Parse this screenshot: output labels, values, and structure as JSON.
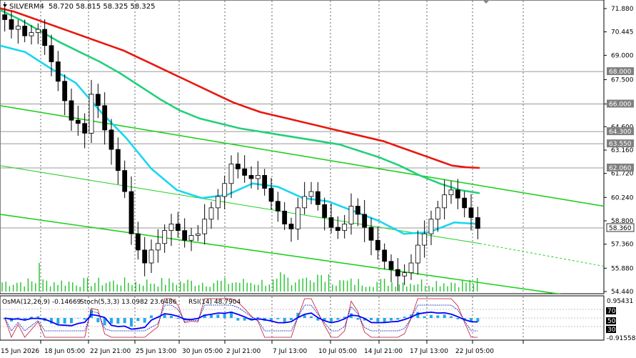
{
  "header": {
    "symbol": "SILVERM4",
    "ohlc": "58.720 58.815 58.325 58.325"
  },
  "indicator_header": {
    "osma": "OsMA(12,26,9) -0.14669",
    "stoch": "Stoch(5,3,3) 13.0982 23.6486",
    "rsi": "RSI(14) 48.7904"
  },
  "x_labels": [
    "15 Jun 2026",
    "18 Jun 05:00",
    "22 Jun 21:00",
    "25 Jun 13:00",
    "30 Jun 05:00",
    "2 Jul 21:00",
    "7 Jul 13:00",
    "10 Jul 05:00",
    "14 Jul 21:00",
    "17 Jul 13:00",
    "22 Jul 05:00"
  ],
  "price_scale": [
    "71.880",
    "70.445",
    "69.000",
    "67.500",
    "66.000",
    "64.600",
    "63.160",
    "61.720",
    "60.240",
    "58.800",
    "57.360",
    "55.880",
    "54.440"
  ],
  "level_labels": [
    "68.000",
    "66.000",
    "64.300",
    "63.550",
    "62.060",
    "58.360"
  ],
  "sub_scale": {
    "top": "0.95431",
    "l70": "70",
    "l50": "50",
    "l30": "30",
    "bottom": "-0.91558"
  },
  "colors": {
    "ma_red": "#e8180f",
    "ma_green": "#22d07a",
    "ma_cyan": "#19d6f0",
    "channel": "#20d020",
    "candles": "#000000",
    "volume": "#22c22c",
    "osma": "#27a9e6",
    "stoch": "#0018a8",
    "rsi_line": "#0000ff"
  },
  "chart_data": {
    "type": "candlestick",
    "ylim": [
      54.44,
      71.88
    ],
    "series": [
      {
        "name": "",
        "kind": "candles",
        "close": [
          71.2,
          70.6,
          70.8,
          70.2,
          70.4,
          70.6,
          69.6,
          68.6,
          67.4,
          66.2,
          65.0,
          64.8,
          64.2,
          66.6,
          65.9,
          64.4,
          63.2,
          61.9,
          60.6,
          58.0,
          57.0,
          56.2,
          57.0,
          57.4,
          58.2,
          58.6,
          58.2,
          57.6,
          57.9,
          58.0,
          58.9,
          59.6,
          60.3,
          61.1,
          62.3,
          62.0,
          61.6,
          61.4,
          61.6,
          60.8,
          60.0,
          59.4,
          58.6,
          58.3,
          59.6,
          60.3,
          60.6,
          59.8,
          59.0,
          58.4,
          58.2,
          58.6,
          59.7,
          59.2,
          58.4,
          57.6,
          57.0,
          56.3,
          55.8,
          55.4,
          55.6,
          56.2,
          57.3,
          58.0,
          58.9,
          59.6,
          60.4,
          60.7,
          60.2,
          59.6,
          59.0,
          58.33
        ]
      },
      {
        "name": "",
        "kind": "ma",
        "values": [
          71.9,
          71.7,
          71.4,
          71.1,
          70.8,
          70.5,
          70.2,
          69.9,
          69.6,
          69.3,
          68.9,
          68.5,
          68.1,
          67.7,
          67.3,
          66.9,
          66.5,
          66.1,
          65.8,
          65.5,
          65.3,
          65.1,
          64.9,
          64.7,
          64.5,
          64.3,
          64.1,
          63.9,
          63.7,
          63.4,
          63.1,
          62.8,
          62.5,
          62.2,
          62.1,
          62.06
        ]
      },
      {
        "name": "",
        "kind": "ma",
        "values": [
          71.8,
          71.2,
          70.5,
          69.8,
          69.2,
          68.6,
          67.9,
          67.1,
          66.3,
          65.6,
          65.1,
          64.8,
          64.5,
          64.3,
          64.1,
          63.9,
          63.7,
          63.5,
          63.1,
          62.7,
          62.2,
          61.6,
          61.1,
          60.7,
          60.5
        ]
      },
      {
        "name": "",
        "kind": "ma",
        "values": [
          69.6,
          69.2,
          68.2,
          67.3,
          65.5,
          63.9,
          62.0,
          60.7,
          60.2,
          60.4,
          61.1,
          60.9,
          60.2,
          60.0,
          59.4,
          58.8,
          58.0,
          58.1,
          58.7,
          58.6
        ]
      }
    ],
    "levels": [
      68.0,
      66.0,
      64.3,
      63.55,
      62.06,
      58.36
    ],
    "oscillators": {
      "osma": -0.14669,
      "stoch_k": 13.0982,
      "stoch_d": 23.6486,
      "rsi": 48.7904
    }
  }
}
